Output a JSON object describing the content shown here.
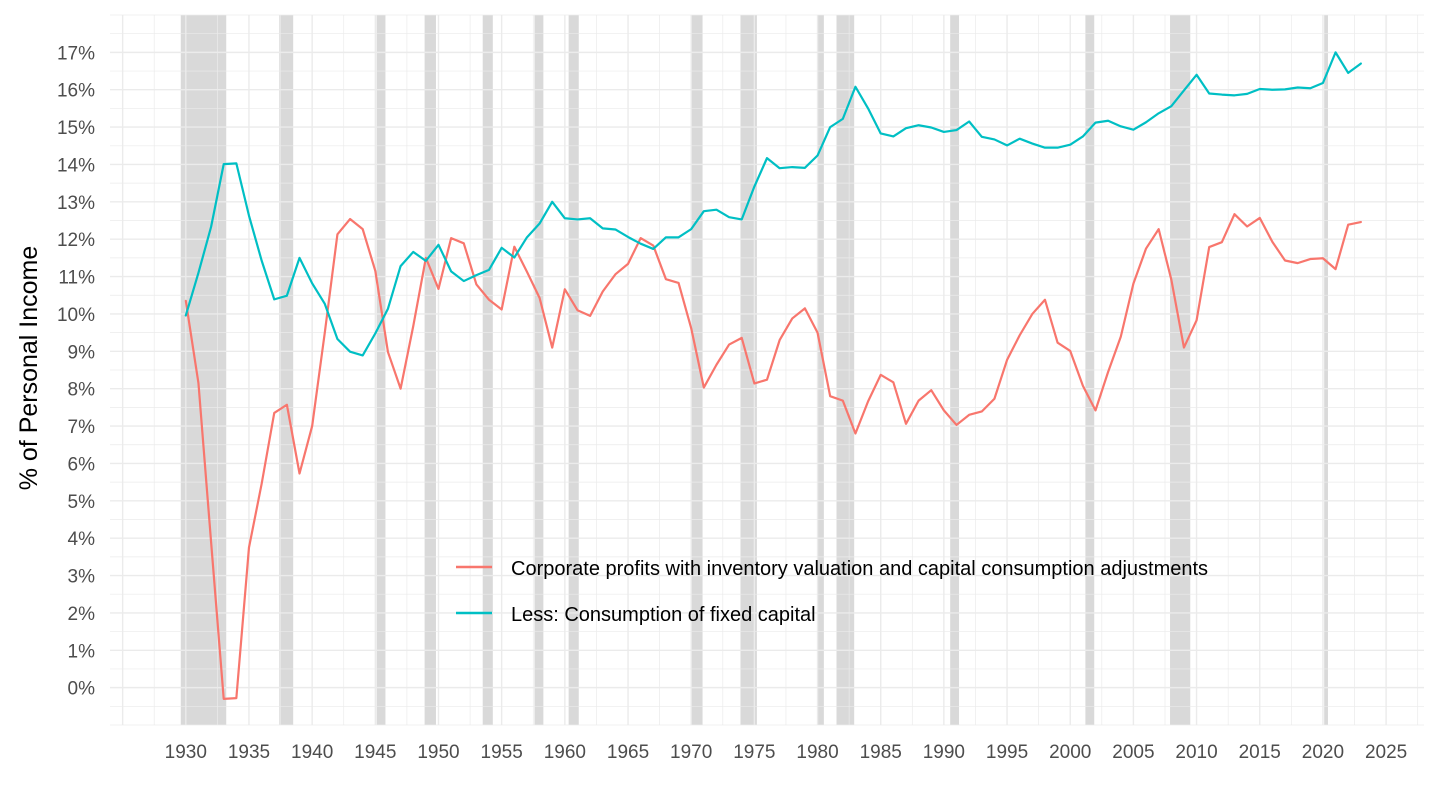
{
  "chart_data": {
    "type": "line",
    "title": "",
    "xlabel": "",
    "ylabel": "% of Personal Income",
    "xlim": [
      1924,
      2028
    ],
    "ylim": [
      -1,
      18
    ],
    "x_ticks": [
      1930,
      1935,
      1940,
      1945,
      1950,
      1955,
      1960,
      1965,
      1970,
      1975,
      1980,
      1985,
      1990,
      1995,
      2000,
      2005,
      2010,
      2015,
      2020,
      2025
    ],
    "x_tick_labels": [
      "1930",
      "1935",
      "1940",
      "1945",
      "1950",
      "1955",
      "1960",
      "1965",
      "1970",
      "1975",
      "1980",
      "1985",
      "1990",
      "1995",
      "2000",
      "2005",
      "2010",
      "2015",
      "2020",
      "2025"
    ],
    "y_ticks": [
      0,
      1,
      2,
      3,
      4,
      5,
      6,
      7,
      8,
      9,
      10,
      11,
      12,
      13,
      14,
      15,
      16,
      17
    ],
    "y_tick_labels": [
      "0%",
      "1%",
      "2%",
      "3%",
      "4%",
      "5%",
      "6%",
      "7%",
      "8%",
      "9%",
      "10%",
      "11%",
      "12%",
      "13%",
      "14%",
      "15%",
      "16%",
      "17%"
    ],
    "grid": true,
    "legend_position": "bottom-right",
    "recessions": [
      [
        1929.6,
        1933.2
      ],
      [
        1937.4,
        1938.5
      ],
      [
        1945.1,
        1945.8
      ],
      [
        1948.9,
        1949.8
      ],
      [
        1953.5,
        1954.3
      ],
      [
        1957.6,
        1958.3
      ],
      [
        1960.3,
        1961.1
      ],
      [
        1970.0,
        1970.9
      ],
      [
        1973.9,
        1975.2
      ],
      [
        1980.0,
        1980.5
      ],
      [
        1981.5,
        1982.9
      ],
      [
        1990.5,
        1991.2
      ],
      [
        2001.2,
        2001.9
      ],
      [
        2007.9,
        2009.5
      ],
      [
        2020.1,
        2020.4
      ]
    ],
    "series": [
      {
        "name": "Corporate profits with inventory valuation and capital consumption adjustments",
        "color": "#F8766D",
        "x": [
          1930,
          1931,
          1932,
          1933,
          1934,
          1935,
          1936,
          1937,
          1938,
          1939,
          1940,
          1941,
          1942,
          1943,
          1944,
          1945,
          1946,
          1947,
          1948,
          1949,
          1950,
          1951,
          1952,
          1953,
          1954,
          1955,
          1956,
          1957,
          1958,
          1959,
          1960,
          1961,
          1962,
          1963,
          1964,
          1965,
          1966,
          1967,
          1968,
          1969,
          1970,
          1971,
          1972,
          1973,
          1974,
          1975,
          1976,
          1977,
          1978,
          1979,
          1980,
          1981,
          1982,
          1983,
          1984,
          1985,
          1986,
          1987,
          1988,
          1989,
          1990,
          1991,
          1992,
          1993,
          1994,
          1995,
          1996,
          1997,
          1998,
          1999,
          2000,
          2001,
          2002,
          2003,
          2004,
          2005,
          2006,
          2007,
          2008,
          2009,
          2010,
          2011,
          2012,
          2013,
          2014,
          2015,
          2016,
          2017,
          2018,
          2019,
          2020,
          2021,
          2022,
          2023
        ],
        "values": [
          10.35,
          8.15,
          3.9,
          -0.3,
          -0.28,
          3.75,
          5.45,
          7.35,
          7.57,
          5.73,
          7.0,
          9.5,
          12.13,
          12.54,
          12.27,
          11.15,
          8.98,
          8.0,
          9.67,
          11.5,
          10.67,
          12.03,
          11.89,
          10.79,
          10.38,
          10.12,
          11.8,
          11.13,
          10.43,
          9.1,
          10.66,
          10.1,
          9.95,
          10.6,
          11.06,
          11.34,
          12.03,
          11.83,
          10.93,
          10.83,
          9.62,
          8.03,
          8.64,
          9.18,
          9.36,
          8.14,
          8.24,
          9.3,
          9.88,
          10.15,
          9.5,
          7.8,
          7.68,
          6.8,
          7.66,
          8.37,
          8.17,
          7.06,
          7.68,
          7.96,
          7.42,
          7.03,
          7.3,
          7.39,
          7.73,
          8.77,
          9.43,
          10.0,
          10.38,
          9.23,
          9.01,
          8.08,
          7.42,
          8.45,
          9.39,
          10.81,
          11.75,
          12.27,
          10.92,
          9.1,
          9.83,
          11.79,
          11.92,
          12.67,
          12.34,
          12.57,
          11.93,
          11.43,
          11.36,
          11.47,
          11.49,
          11.2,
          12.39,
          12.46
        ]
      },
      {
        "name": "Less: Consumption of fixed capital",
        "color": "#00BFC4",
        "x": [
          1930,
          1931,
          1932,
          1933,
          1934,
          1935,
          1936,
          1937,
          1938,
          1939,
          1940,
          1941,
          1942,
          1943,
          1944,
          1945,
          1946,
          1947,
          1948,
          1949,
          1950,
          1951,
          1952,
          1953,
          1954,
          1955,
          1956,
          1957,
          1958,
          1959,
          1960,
          1961,
          1962,
          1963,
          1964,
          1965,
          1966,
          1967,
          1968,
          1969,
          1970,
          1971,
          1972,
          1973,
          1974,
          1975,
          1976,
          1977,
          1978,
          1979,
          1980,
          1981,
          1982,
          1983,
          1984,
          1985,
          1986,
          1987,
          1988,
          1989,
          1990,
          1991,
          1992,
          1993,
          1994,
          1995,
          1996,
          1997,
          1998,
          1999,
          2000,
          2001,
          2002,
          2003,
          2004,
          2005,
          2006,
          2007,
          2008,
          2009,
          2010,
          2011,
          2012,
          2013,
          2014,
          2015,
          2016,
          2017,
          2018,
          2019,
          2020,
          2021,
          2022,
          2023
        ],
        "values": [
          9.96,
          11.1,
          12.33,
          14.01,
          14.03,
          12.63,
          11.43,
          10.39,
          10.49,
          11.5,
          10.82,
          10.27,
          9.33,
          8.99,
          8.89,
          9.48,
          10.14,
          11.28,
          11.66,
          11.42,
          11.85,
          11.14,
          10.88,
          11.04,
          11.18,
          11.77,
          11.51,
          12.05,
          12.42,
          13.0,
          12.56,
          12.53,
          12.56,
          12.29,
          12.26,
          12.06,
          11.88,
          11.74,
          12.05,
          12.05,
          12.27,
          12.75,
          12.79,
          12.59,
          12.53,
          13.41,
          14.17,
          13.9,
          13.93,
          13.91,
          14.24,
          15.0,
          15.22,
          16.08,
          15.5,
          14.83,
          14.75,
          14.97,
          15.05,
          14.99,
          14.87,
          14.92,
          15.15,
          14.74,
          14.67,
          14.51,
          14.69,
          14.56,
          14.45,
          14.45,
          14.53,
          14.75,
          15.12,
          15.17,
          15.02,
          14.93,
          15.13,
          15.37,
          15.56,
          15.98,
          16.4,
          15.9,
          15.87,
          15.85,
          15.89,
          16.02,
          16.0,
          16.01,
          16.06,
          16.04,
          16.18,
          17.0,
          16.45,
          16.7
        ]
      }
    ]
  }
}
